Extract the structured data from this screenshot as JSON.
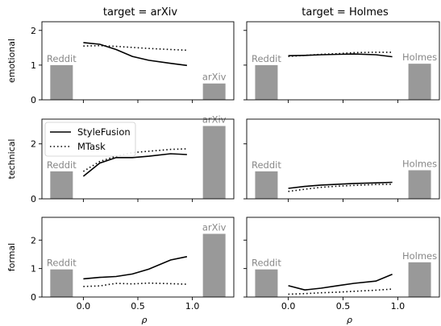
{
  "chart_data": {
    "type": "line",
    "columns": [
      {
        "key": "arxiv",
        "title": "target = arXiv",
        "target_bar_label": "arXiv"
      },
      {
        "key": "holmes",
        "title": "target = Holmes",
        "target_bar_label": "Holmes"
      }
    ],
    "source_bar_label": "Reddit",
    "xlabel": "ρ",
    "xlim": [
      -0.38,
      1.38
    ],
    "xticks": [
      0.0,
      0.5,
      1.0
    ],
    "xtick_labels": [
      "0.0",
      "0.5",
      "1.0"
    ],
    "rho": [
      0.0,
      0.15,
      0.3,
      0.45,
      0.6,
      0.8,
      0.95
    ],
    "series_styles": [
      {
        "name": "StyleFusion",
        "dash": "solid",
        "color": "#000000"
      },
      {
        "name": "MTask",
        "dash": "dotted",
        "color": "#000000"
      }
    ],
    "legend": {
      "entries": [
        "StyleFusion",
        "MTask"
      ],
      "position": "upper-left",
      "panel": "technical-arXiv"
    },
    "bar_color": "#999999",
    "rows": [
      {
        "ylabel": "emotional",
        "ylim": [
          0,
          2.25
        ],
        "yticks": [
          0,
          1,
          2
        ],
        "panels": [
          {
            "column": "arxiv",
            "source_value": 1.0,
            "target_value": 0.47,
            "series": [
              {
                "name": "StyleFusion",
                "values": [
                  1.65,
                  1.6,
                  1.45,
                  1.25,
                  1.14,
                  1.05,
                  0.99
                ]
              },
              {
                "name": "MTask",
                "values": [
                  1.55,
                  1.56,
                  1.54,
                  1.51,
                  1.48,
                  1.45,
                  1.43
                ]
              }
            ]
          },
          {
            "column": "holmes",
            "source_value": 1.0,
            "target_value": 1.04,
            "series": [
              {
                "name": "StyleFusion",
                "values": [
                  1.27,
                  1.28,
                  1.3,
                  1.31,
                  1.32,
                  1.3,
                  1.24
                ]
              },
              {
                "name": "MTask",
                "values": [
                  1.25,
                  1.28,
                  1.31,
                  1.33,
                  1.36,
                  1.37,
                  1.37
                ]
              }
            ]
          }
        ]
      },
      {
        "ylabel": "technical",
        "ylim": [
          0,
          2.9
        ],
        "yticks": [
          0,
          2
        ],
        "panels": [
          {
            "column": "arxiv",
            "source_value": 1.0,
            "target_value": 2.65,
            "series": [
              {
                "name": "StyleFusion",
                "values": [
                  0.82,
                  1.3,
                  1.5,
                  1.5,
                  1.55,
                  1.64,
                  1.61
                ]
              },
              {
                "name": "MTask",
                "values": [
                  1.0,
                  1.36,
                  1.55,
                  1.68,
                  1.73,
                  1.8,
                  1.82
                ]
              }
            ]
          },
          {
            "column": "holmes",
            "source_value": 1.0,
            "target_value": 1.04,
            "series": [
              {
                "name": "StyleFusion",
                "values": [
                  0.38,
                  0.45,
                  0.5,
                  0.53,
                  0.56,
                  0.58,
                  0.6
                ]
              },
              {
                "name": "MTask",
                "values": [
                  0.27,
                  0.35,
                  0.42,
                  0.46,
                  0.49,
                  0.52,
                  0.53
                ]
              }
            ]
          }
        ]
      },
      {
        "ylabel": "formal",
        "ylim": [
          0,
          2.8
        ],
        "yticks": [
          0,
          1,
          2
        ],
        "panels": [
          {
            "column": "arxiv",
            "source_value": 0.97,
            "target_value": 2.22,
            "series": [
              {
                "name": "StyleFusion",
                "values": [
                  0.64,
                  0.69,
                  0.72,
                  0.81,
                  0.98,
                  1.3,
                  1.42
                ]
              },
              {
                "name": "MTask",
                "values": [
                  0.37,
                  0.39,
                  0.48,
                  0.46,
                  0.49,
                  0.47,
                  0.45
                ]
              }
            ]
          },
          {
            "column": "holmes",
            "source_value": 0.97,
            "target_value": 1.22,
            "series": [
              {
                "name": "StyleFusion",
                "values": [
                  0.4,
                  0.25,
                  0.31,
                  0.4,
                  0.48,
                  0.56,
                  0.8
                ]
              },
              {
                "name": "MTask",
                "values": [
                  0.1,
                  0.12,
                  0.15,
                  0.17,
                  0.2,
                  0.24,
                  0.28
                ]
              }
            ]
          }
        ]
      }
    ]
  }
}
